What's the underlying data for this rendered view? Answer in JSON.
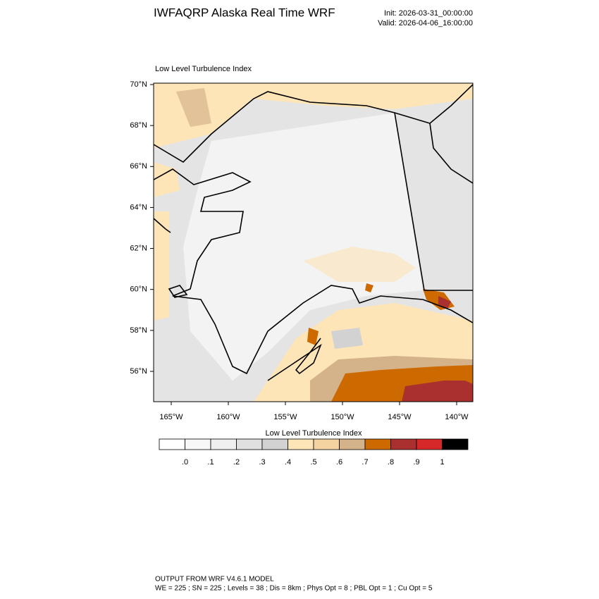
{
  "header": {
    "title": "IWFAQRP Alaska Real Time WRF",
    "init": "Init: 2026-03-31_00:00:00",
    "valid": "Valid: 2026-04-06_16:00:00"
  },
  "map": {
    "title": "Low Level Turbulence Index",
    "lat_labels": [
      "70°N",
      "68°N",
      "66°N",
      "64°N",
      "62°N",
      "60°N",
      "58°N",
      "56°N"
    ],
    "lon_labels": [
      "165°W",
      "160°W",
      "155°W",
      "150°W",
      "145°W",
      "140°W"
    ]
  },
  "colorbar": {
    "title": "Low Level Turbulence Index",
    "colors": [
      "#ffffff",
      "#f7f7f7",
      "#efefef",
      "#e0e0e0",
      "#d2d2d2",
      "#fde5b8",
      "#f4d3a0",
      "#d5b38a",
      "#cc6a00",
      "#aa3030",
      "#d62828",
      "#000000"
    ],
    "labels": [
      ".0",
      ".1",
      ".2",
      ".3",
      ".4",
      ".5",
      ".6",
      ".7",
      ".8",
      ".9",
      "1"
    ]
  },
  "footer": {
    "line1": "OUTPUT FROM WRF V4.6.1 MODEL",
    "line2": "WE = 225 ; SN = 225 ; Levels = 38 ; Dis = 8km ; Phys Opt = 8 ; PBL Opt = 1 ; Cu Opt = 5"
  }
}
